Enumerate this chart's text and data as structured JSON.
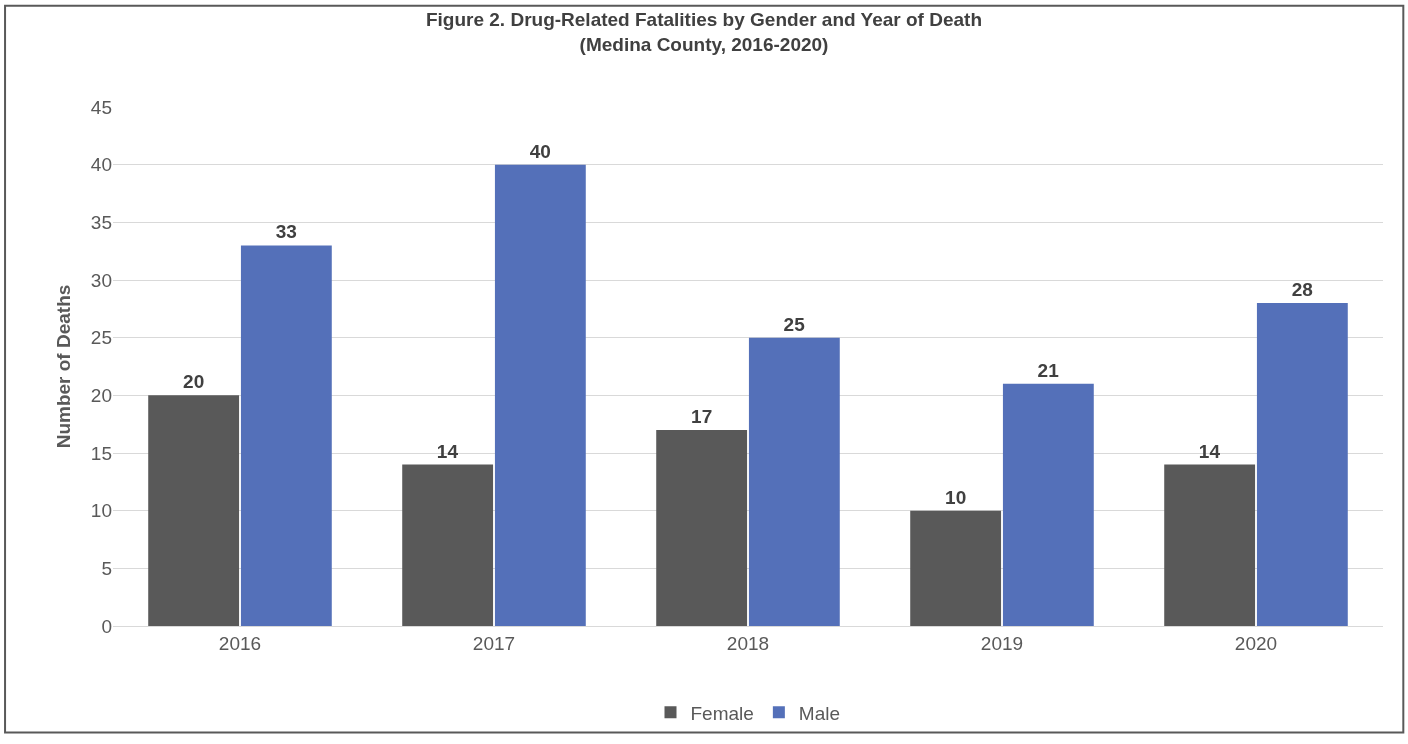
{
  "chart_data": {
    "type": "bar",
    "title": "Figure 2. Drug-Related Fatalities by Gender and Year of Death\n(Medina County, 2016-2020)",
    "ylabel": "Number of Deaths",
    "categories": [
      "2016",
      "2017",
      "2018",
      "2019",
      "2020"
    ],
    "series": [
      {
        "name": "Female",
        "color": "#595959",
        "values": [
          20,
          14,
          17,
          10,
          14
        ]
      },
      {
        "name": "Male",
        "color": "#5470b9",
        "values": [
          33,
          40,
          25,
          21,
          28
        ]
      }
    ],
    "ylim": [
      0,
      45
    ],
    "yticks": [
      0,
      5,
      10,
      15,
      20,
      25,
      30,
      35,
      40,
      45
    ],
    "grid": "y",
    "legend": "bottom",
    "data_labels": true
  }
}
